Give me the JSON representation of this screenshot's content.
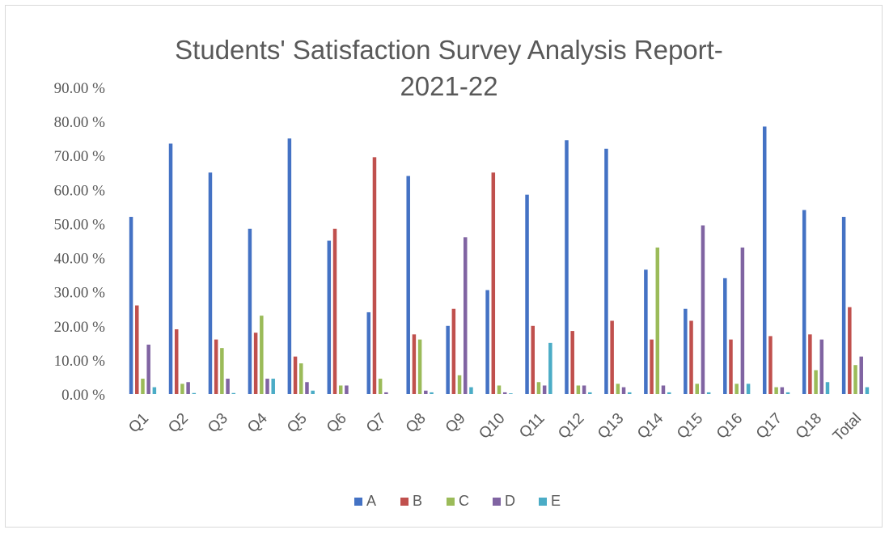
{
  "chart_data": {
    "type": "bar",
    "title_line1": "Students' Satisfaction Survey Analysis Report-",
    "title_line2": "2021-22",
    "xlabel": "",
    "ylabel": "",
    "ylim": [
      0,
      90
    ],
    "y_ticks": [
      "0.00 %",
      "10.00 %",
      "20.00 %",
      "30.00 %",
      "40.00 %",
      "50.00 %",
      "60.00 %",
      "70.00 %",
      "80.00 %",
      "90.00 %"
    ],
    "legend_position": "bottom",
    "grid": false,
    "categories": [
      "Q1",
      "Q2",
      "Q3",
      "Q4",
      "Q5",
      "Q6",
      "Q7",
      "Q8",
      "Q9",
      "Q10",
      "Q11",
      "Q12",
      "Q13",
      "Q14",
      "Q15",
      "Q16",
      "Q17",
      "Q18",
      "Total"
    ],
    "series": [
      {
        "name": "A",
        "color": "#4472c4",
        "values": [
          52.0,
          73.5,
          65.0,
          48.5,
          75.0,
          45.0,
          24.0,
          64.0,
          20.0,
          30.5,
          58.5,
          74.5,
          72.0,
          36.5,
          25.0,
          34.0,
          78.5,
          54.0,
          52.0
        ]
      },
      {
        "name": "B",
        "color": "#c0504d",
        "values": [
          26.0,
          19.0,
          16.0,
          18.0,
          11.0,
          48.5,
          69.5,
          17.5,
          25.0,
          65.0,
          20.0,
          18.5,
          21.5,
          16.0,
          21.5,
          16.0,
          17.0,
          17.5,
          25.5
        ]
      },
      {
        "name": "C",
        "color": "#9bbb59",
        "values": [
          4.5,
          3.0,
          13.5,
          23.0,
          9.0,
          2.5,
          4.5,
          16.0,
          5.5,
          2.5,
          3.5,
          2.5,
          3.0,
          43.0,
          3.0,
          3.0,
          2.0,
          7.0,
          8.5
        ]
      },
      {
        "name": "D",
        "color": "#8064a2",
        "values": [
          14.5,
          3.5,
          4.5,
          4.5,
          3.5,
          2.5,
          0.5,
          1.0,
          46.0,
          0.5,
          2.5,
          2.5,
          2.0,
          2.5,
          49.5,
          43.0,
          2.0,
          16.0,
          11.0
        ]
      },
      {
        "name": "E",
        "color": "#4bacc6",
        "values": [
          2.0,
          0.3,
          0.3,
          4.5,
          1.0,
          0.0,
          0.0,
          0.5,
          2.0,
          0.2,
          15.0,
          0.5,
          0.5,
          0.5,
          0.5,
          3.0,
          0.5,
          3.5,
          2.0
        ]
      }
    ]
  }
}
